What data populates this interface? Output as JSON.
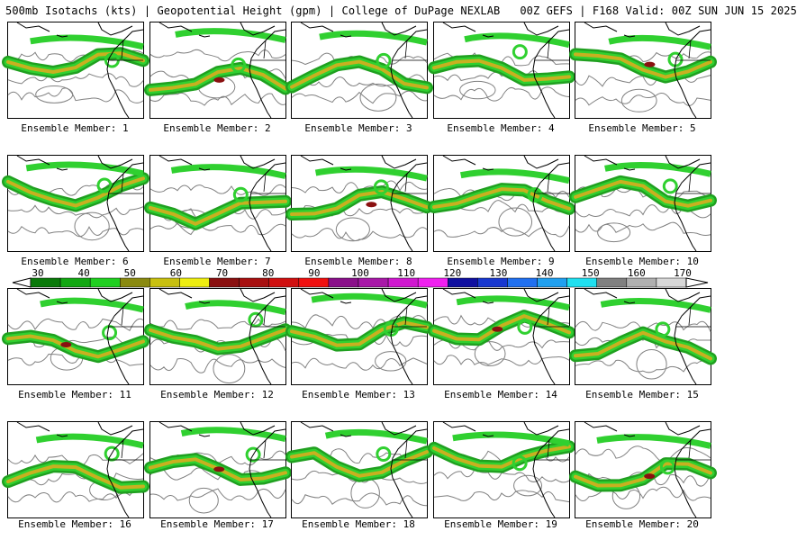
{
  "header": {
    "title": "500mb Isotachs (kts) | Geopotential Height (gpm) | College of DuPage NEXLAB   00Z GEFS | F168 Valid: 00Z SUN JUN 15 2025"
  },
  "members": [
    "Ensemble Member: 1",
    "Ensemble Member: 2",
    "Ensemble Member: 3",
    "Ensemble Member: 4",
    "Ensemble Member: 5",
    "Ensemble Member: 6",
    "Ensemble Member: 7",
    "Ensemble Member: 8",
    "Ensemble Member: 9",
    "Ensemble Member: 10",
    "Ensemble Member: 11",
    "Ensemble Member: 12",
    "Ensemble Member: 13",
    "Ensemble Member: 14",
    "Ensemble Member: 15",
    "Ensemble Member: 16",
    "Ensemble Member: 17",
    "Ensemble Member: 18",
    "Ensemble Member: 19",
    "Ensemble Member: 20"
  ],
  "colorbar": {
    "labels": [
      "30",
      "40",
      "50",
      "60",
      "70",
      "80",
      "90",
      "100",
      "110",
      "120",
      "130",
      "140",
      "150",
      "160",
      "170"
    ],
    "colors": [
      "#0a7a0a",
      "#12a812",
      "#20d020",
      "#8a8a10",
      "#c8c010",
      "#eeee10",
      "#8a1010",
      "#a81010",
      "#d01010",
      "#f01010",
      "#8a108a",
      "#a818a8",
      "#d018d0",
      "#f020f0",
      "#1010a0",
      "#1838d0",
      "#2070f0",
      "#20a0f0",
      "#20e0f0",
      "#808080",
      "#b0b0b0",
      "#d8d8d8"
    ]
  },
  "map_colors": {
    "jet_low": "#20a020",
    "jet_mid": "#30d030",
    "jet_core": "#c8b020",
    "jet_max": "#8a1010",
    "height_contour": "#808080",
    "coast": "#000000"
  }
}
